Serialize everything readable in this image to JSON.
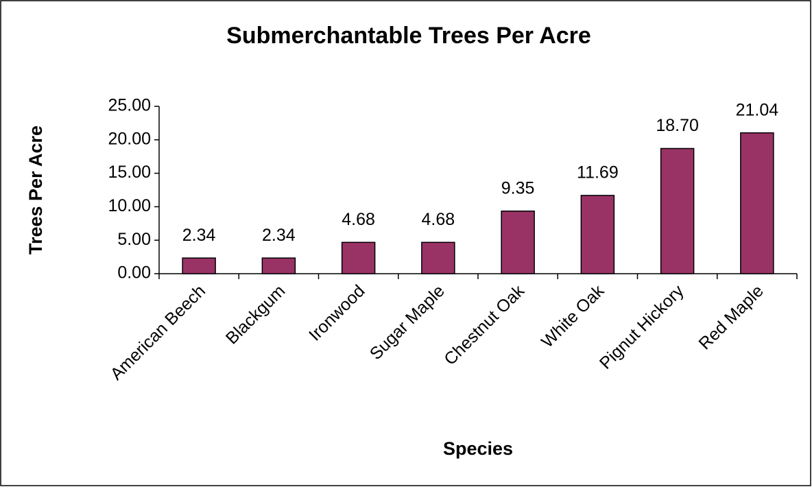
{
  "chart_data": {
    "type": "bar",
    "title": "Submerchantable Trees Per Acre",
    "x_label": "Species",
    "y_label": "Trees Per Acre",
    "categories": [
      "American Beech",
      "Blackgum",
      "Ironwood",
      "Sugar Maple",
      "Chestnut Oak",
      "White Oak",
      "Pignut Hickory",
      "Red Maple"
    ],
    "values": [
      2.34,
      2.34,
      4.68,
      4.68,
      9.35,
      11.69,
      18.7,
      21.04
    ],
    "value_labels": [
      "2.34",
      "2.34",
      "4.68",
      "4.68",
      "9.35",
      "11.69",
      "18.70",
      "21.04"
    ],
    "color": "#993366",
    "ylim": [
      0,
      25
    ],
    "yticks": [
      {
        "value": 0,
        "label": "0.00"
      },
      {
        "value": 5,
        "label": "5.00"
      },
      {
        "value": 10,
        "label": "10.00"
      },
      {
        "value": 15,
        "label": "15.00"
      },
      {
        "value": 20,
        "label": "20.00"
      },
      {
        "value": 25,
        "label": "25.00"
      }
    ],
    "grid": false
  }
}
